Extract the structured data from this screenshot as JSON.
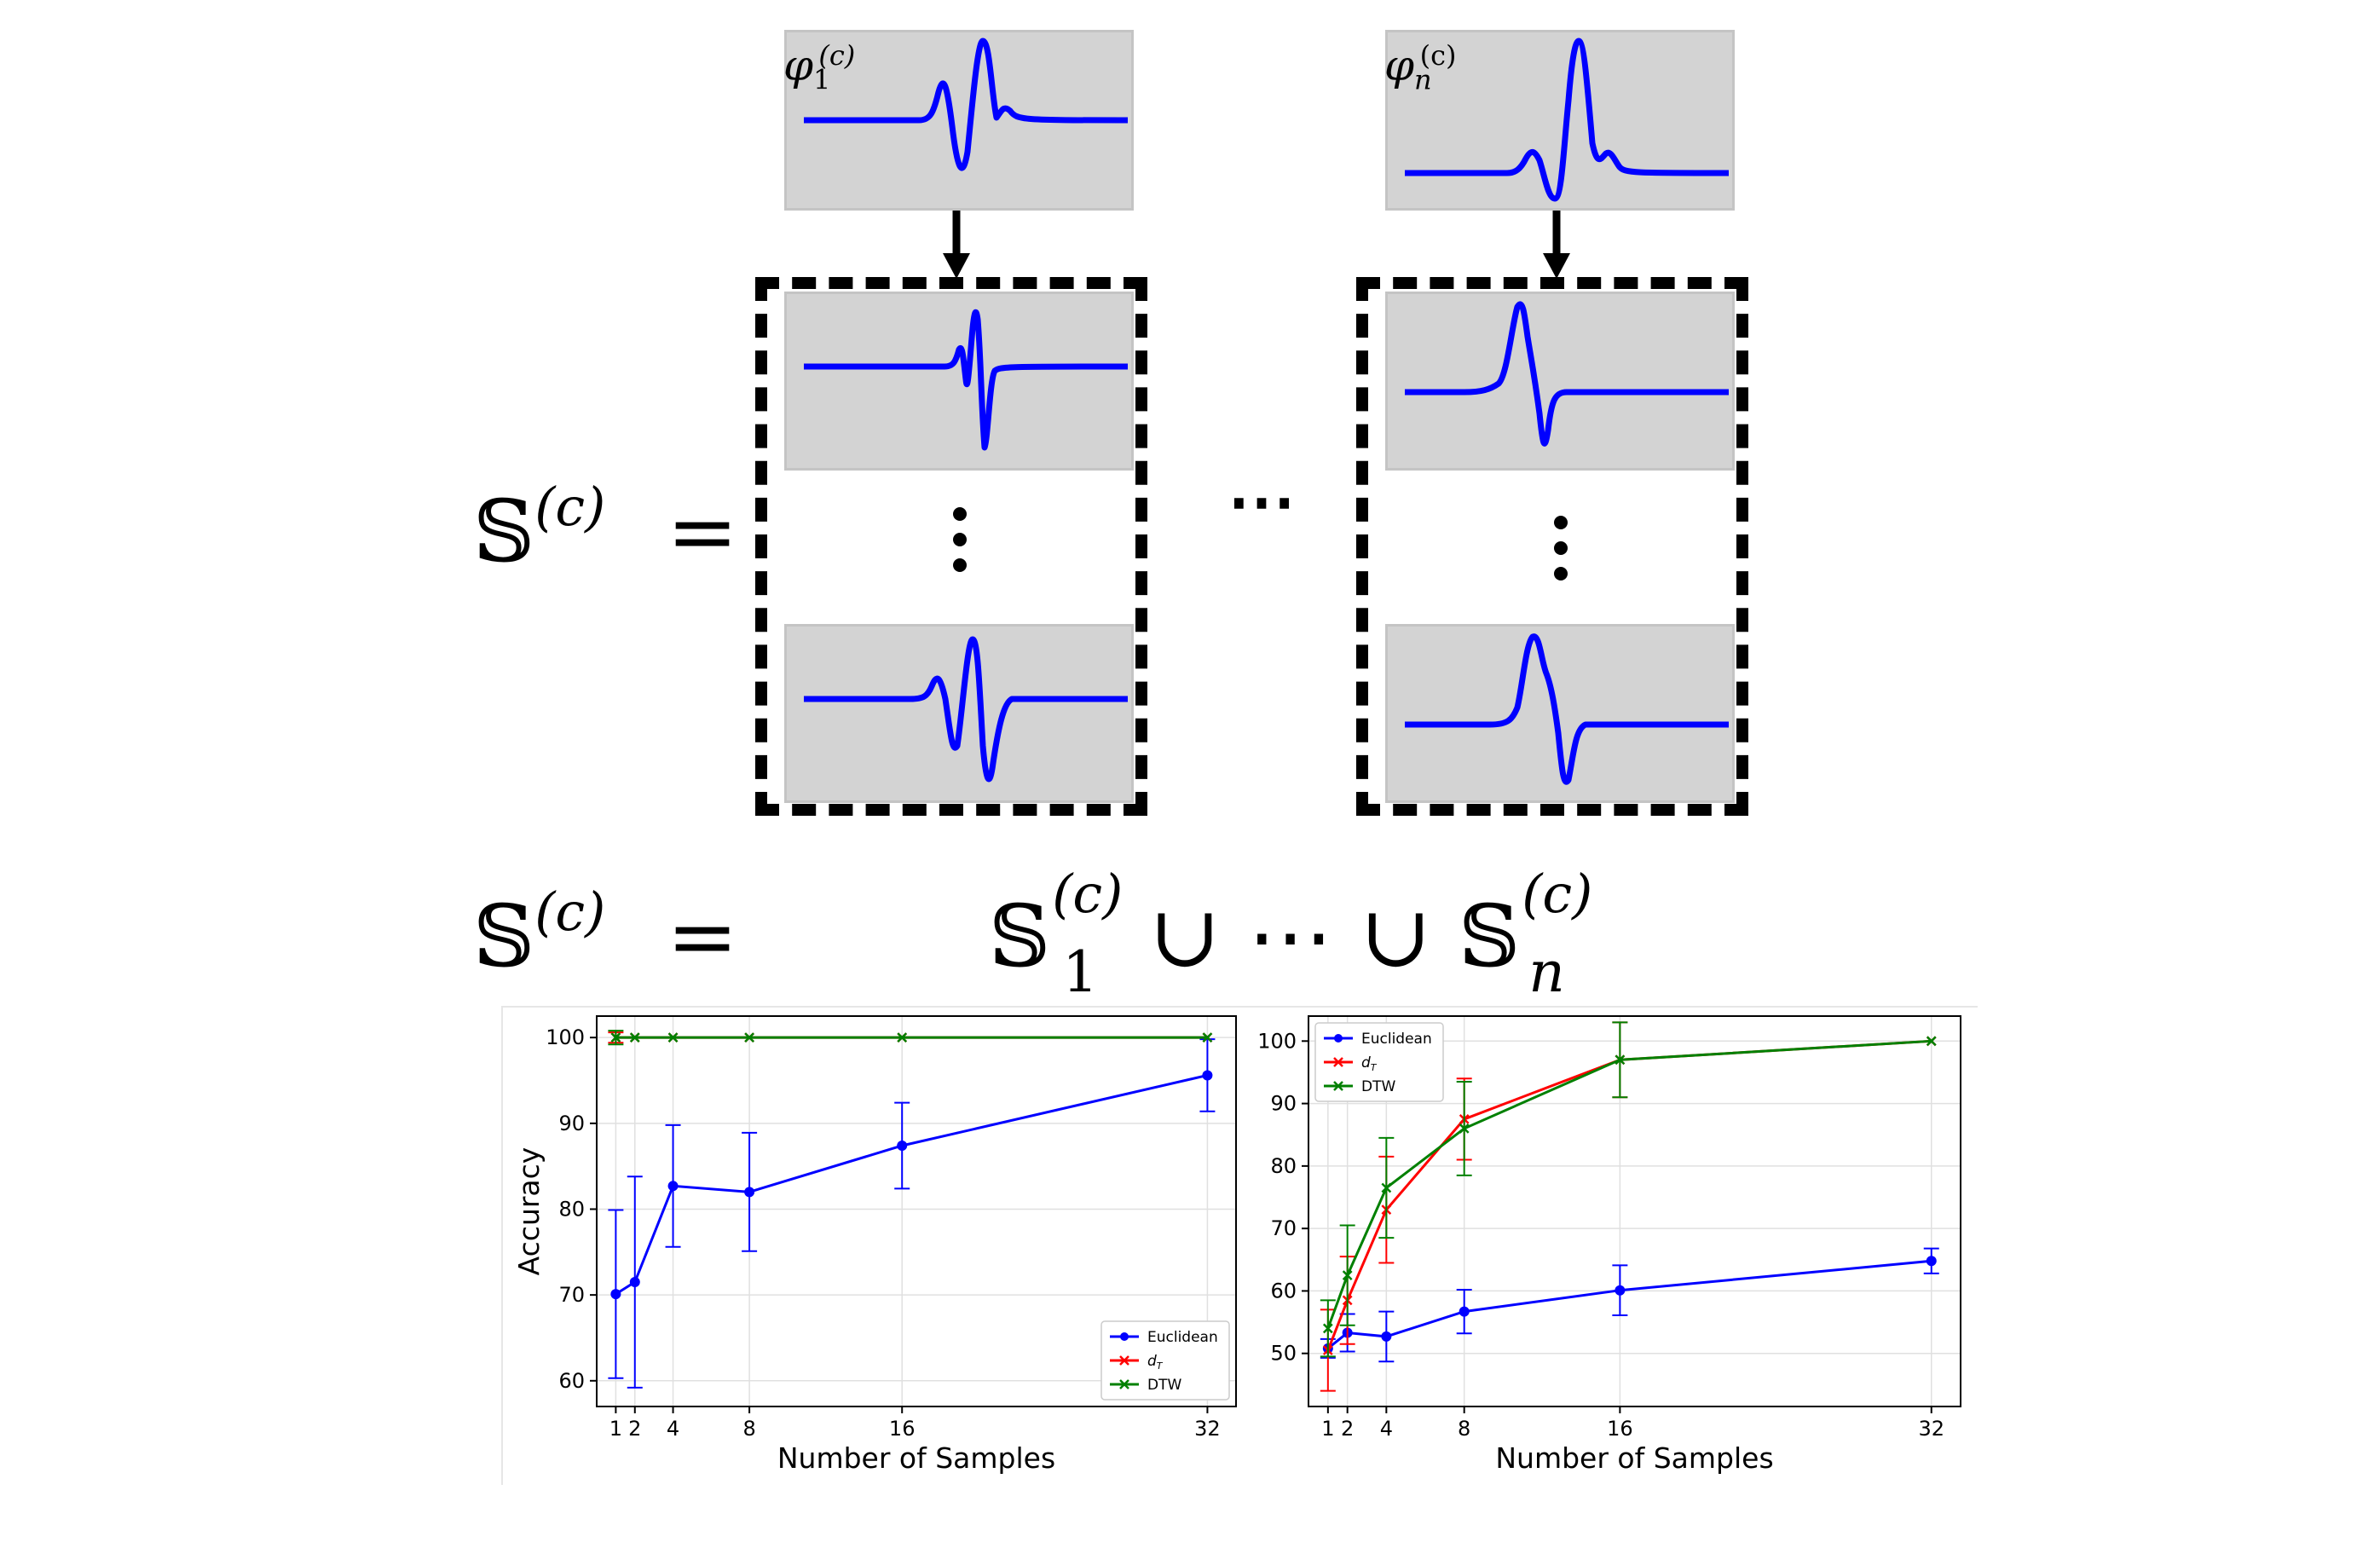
{
  "diagram": {
    "prototype_labels": {
      "phi1": "φ",
      "phi1_sub": "1",
      "phi1_sup": "(c)",
      "phin": "φ",
      "phin_sub": "n",
      "phin_sup": "(c)"
    },
    "equation1": {
      "lhs": "𝕊",
      "sup": "(c)",
      "eq": "="
    },
    "equation2": {
      "lhs": "𝕊",
      "sup": "(c)",
      "eq": "=",
      "rhs_s1": "𝕊",
      "rhs_s1_sub": "1",
      "rhs_s1_sup": "(c)",
      "union": "∪",
      "dots": "⋯",
      "rhs_sn": "𝕊",
      "rhs_sn_sub": "n",
      "rhs_sn_sup": "(c)"
    },
    "between_columns": "⋯",
    "signal_color": "#0000ff"
  },
  "chart_data": [
    {
      "type": "line",
      "title": "",
      "xlabel": "Number of Samples",
      "ylabel": "Accuracy",
      "x": [
        1,
        2,
        4,
        8,
        16,
        32
      ],
      "xticks": [
        "1",
        "2",
        "4",
        "8",
        "16",
        "32"
      ],
      "ylim": [
        57,
        102.5
      ],
      "yticks": [
        60,
        70,
        80,
        90,
        100
      ],
      "grid": true,
      "legend": "bottom-right",
      "series": [
        {
          "name": "Euclidean",
          "color": "#0000ff",
          "marker": "o",
          "values": [
            70.1,
            71.5,
            82.7,
            82.0,
            87.4,
            95.6
          ],
          "errors": [
            9.8,
            12.3,
            7.1,
            6.9,
            5.0,
            4.2
          ]
        },
        {
          "name": "d_T",
          "color": "#ff0000",
          "marker": "x",
          "values": [
            100,
            100,
            100,
            100,
            100,
            100
          ],
          "errors": [
            0.6,
            0,
            0,
            0,
            0,
            0
          ]
        },
        {
          "name": "DTW",
          "color": "#008000",
          "marker": "x",
          "values": [
            100,
            100,
            100,
            100,
            100,
            100
          ],
          "errors": [
            0.8,
            0,
            0,
            0,
            0,
            0
          ]
        }
      ]
    },
    {
      "type": "line",
      "title": "",
      "xlabel": "Number of Samples",
      "ylabel": "",
      "x": [
        1,
        2,
        4,
        8,
        16,
        32
      ],
      "xticks": [
        "1",
        "2",
        "4",
        "8",
        "16",
        "32"
      ],
      "ylim": [
        41.5,
        104
      ],
      "yticks": [
        50,
        60,
        70,
        80,
        90,
        100
      ],
      "grid": true,
      "legend": "top-left",
      "series": [
        {
          "name": "Euclidean",
          "color": "#0000ff",
          "marker": "o",
          "values": [
            50.8,
            53.3,
            52.7,
            56.7,
            60.1,
            64.8
          ],
          "errors": [
            1.5,
            3.0,
            4.0,
            3.5,
            4.0,
            2.0
          ]
        },
        {
          "name": "d_T",
          "color": "#ff0000",
          "marker": "x",
          "values": [
            50.5,
            58.5,
            73.0,
            87.5,
            97.0,
            100
          ],
          "errors": [
            6.5,
            7.0,
            8.5,
            6.5,
            6.0,
            0
          ]
        },
        {
          "name": "DTW",
          "color": "#008000",
          "marker": "x",
          "values": [
            54.0,
            62.5,
            76.5,
            86.0,
            97.0,
            100
          ],
          "errors": [
            4.5,
            8.0,
            8.0,
            7.5,
            6.0,
            0
          ]
        }
      ]
    }
  ]
}
